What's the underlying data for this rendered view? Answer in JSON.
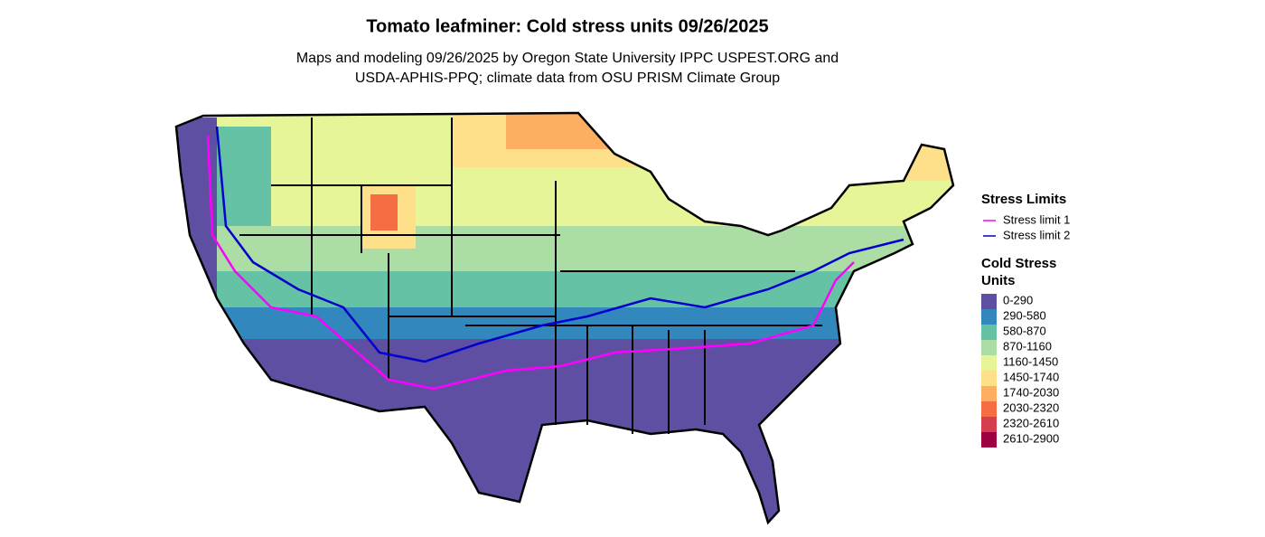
{
  "title": "Tomato leafminer: Cold stress units 09/26/2025",
  "subtitle": [
    "Maps and modeling 09/26/2025 by Oregon State University IPPC USPEST.ORG and",
    "USDA-APHIS-PPQ; climate data from OSU PRISM Climate Group"
  ],
  "legend": {
    "stress_limits": {
      "title": "Stress Limits",
      "items": [
        {
          "label": "Stress limit 1",
          "color": "#ff00ff"
        },
        {
          "label": "Stress limit 2",
          "color": "#0000cc"
        }
      ]
    },
    "units": {
      "title": [
        "Cold Stress",
        "Units"
      ],
      "items": [
        {
          "label": "0-290",
          "color": "#5e4fa2"
        },
        {
          "label": "290-580",
          "color": "#3288bd"
        },
        {
          "label": "580-870",
          "color": "#66c2a5"
        },
        {
          "label": "870-1160",
          "color": "#abdda4"
        },
        {
          "label": "1160-1450",
          "color": "#e6f598"
        },
        {
          "label": "1450-1740",
          "color": "#fee08b"
        },
        {
          "label": "1740-2030",
          "color": "#fdae61"
        },
        {
          "label": "2030-2320",
          "color": "#f46d43"
        },
        {
          "label": "2320-2610",
          "color": "#d53e4f"
        },
        {
          "label": "2610-2900",
          "color": "#9e0142"
        }
      ]
    }
  }
}
